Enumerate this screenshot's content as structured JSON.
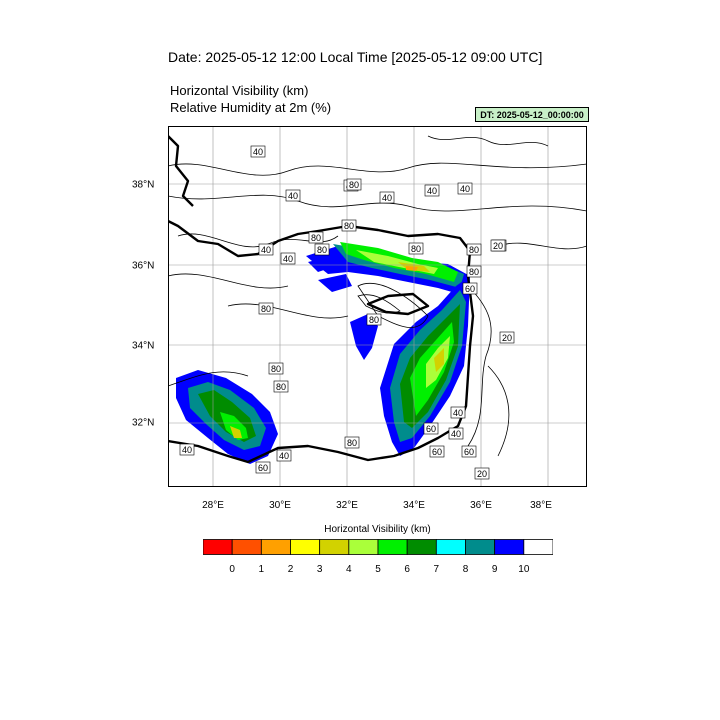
{
  "header": {
    "title": "Date: 2025-05-12  12:00 Local Time [2025-05-12  09:00 UTC]",
    "field1": "Horizontal Visibility   (km)",
    "field2": "Relative Humidity at 2m   (%)",
    "dt_label": "DT: 2025-05-12_00:00:00"
  },
  "map": {
    "lon_labels": [
      "28°E",
      "30°E",
      "32°E",
      "34°E",
      "36°E",
      "38°E"
    ],
    "lat_labels": [
      "38°N",
      "36°N",
      "34°N",
      "32°N"
    ],
    "contour_labels": [
      "40",
      "40",
      "40",
      "40",
      "40",
      "40",
      "80",
      "80",
      "40",
      "80",
      "40",
      "80",
      "20",
      "80",
      "20",
      "80",
      "80",
      "60",
      "80",
      "80",
      "20",
      "40",
      "40",
      "60",
      "60",
      "40",
      "60",
      "80",
      "80",
      "40",
      "60",
      "80",
      "20"
    ]
  },
  "legend": {
    "title": "Horizontal Visibility  (km)",
    "labels": [
      "0",
      "1",
      "2",
      "3",
      "4",
      "5",
      "6",
      "7",
      "8",
      "9",
      "10"
    ],
    "colors": [
      "#ff0000",
      "#ff5000",
      "#ffa000",
      "#ffff00",
      "#d2d200",
      "#aaff3a",
      "#00f000",
      "#008c00",
      "#00ffff",
      "#008c8c",
      "#0000ff",
      "#ffffff"
    ]
  }
}
